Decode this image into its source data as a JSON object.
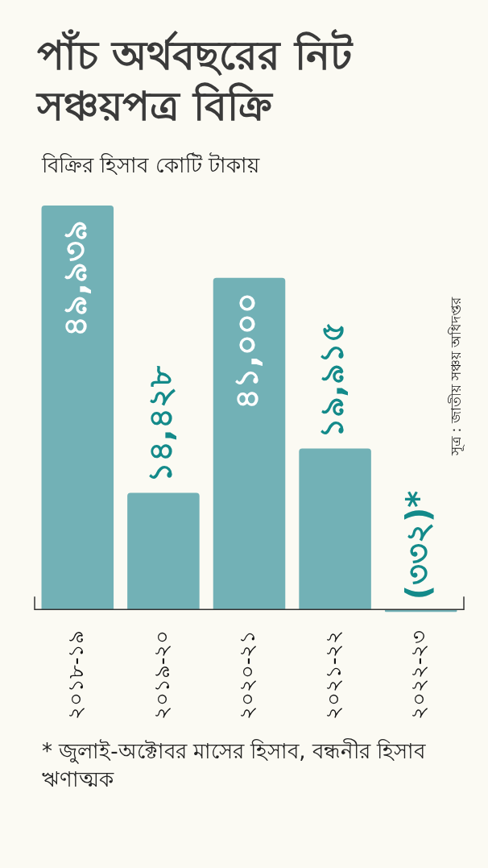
{
  "chart_data": {
    "type": "bar",
    "title": "পাঁচ অর্থবছরের নিট সঞ্চয়পত্র বিক্রি",
    "subtitle": "বিক্রির হিসাব কোটি টাকায়",
    "categories": [
      "২০১৮-১৯",
      "২০১৯-২০",
      "২০২০-২১",
      "২০২১-২২",
      "২০২২-২৩"
    ],
    "values": [
      49939,
      14428,
      41000,
      19915,
      -332
    ],
    "value_labels": [
      "৪৯,৯৩৯",
      "১৪,৪২৮",
      "৪১,০০০",
      "১৯,৯১৫",
      "(৩৩২)*"
    ],
    "color": "#72b1b6",
    "annotations": [
      "সূত্র : জাতীয় সঞ্চয় অধিদপ্তর",
      "* জুলাই-অক্টোবর মাসের হিসাব, বন্ধনীর হিসাব ঋণাত্মক"
    ],
    "grid": false,
    "legend": false
  }
}
